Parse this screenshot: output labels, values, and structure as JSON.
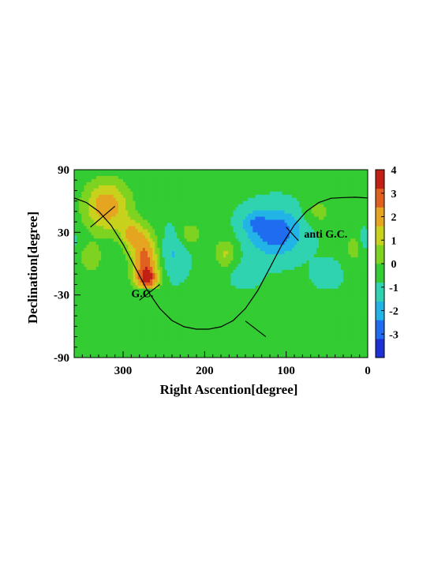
{
  "chart_data": {
    "type": "heatmap",
    "title": "",
    "xlabel": "Right Ascention[degree]",
    "ylabel": "Declination[degree]",
    "xlim": [
      360,
      0
    ],
    "ylim": [
      -90,
      90
    ],
    "x_reversed": true,
    "x_ticks": [
      300,
      200,
      100,
      0
    ],
    "x_tick_labels": [
      "300",
      "200",
      "100",
      "0"
    ],
    "y_ticks": [
      90,
      30,
      -30,
      -90
    ],
    "y_tick_labels": [
      "90",
      "30",
      "-30",
      "-90"
    ],
    "colorbar": {
      "range": [
        -4,
        4
      ],
      "ticks": [
        4,
        3,
        2,
        1,
        0,
        -1,
        -2,
        -3
      ],
      "tick_labels": [
        "4",
        "3",
        "2",
        "1",
        "0",
        "-1",
        "-2",
        "-3"
      ],
      "colors": [
        "#1f2fd6",
        "#1f6cf0",
        "#22b4e6",
        "#2fd3b0",
        "#33cc33",
        "#7ed320",
        "#c8d21c",
        "#e6a520",
        "#e06020",
        "#c21f15"
      ]
    },
    "grid": false,
    "background_value": -0.7,
    "coverage_dec_min": -25,
    "features": [
      {
        "name": "G.C. excess",
        "ra": 273,
        "dec": 5,
        "sigma_ra": 12,
        "sigma_dec": 18,
        "amp": 3.3
      },
      {
        "name": "G.C. excess lower",
        "ra": 270,
        "dec": -15,
        "sigma_ra": 10,
        "sigma_dec": 8,
        "amp": 2.7
      },
      {
        "name": "Cygnus excess",
        "ra": 320,
        "dec": 55,
        "sigma_ra": 20,
        "sigma_dec": 18,
        "amp": 2.9
      },
      {
        "name": "excess 285",
        "ra": 290,
        "dec": 28,
        "sigma_ra": 10,
        "sigma_dec": 10,
        "amp": 2.0
      },
      {
        "name": "excess 175",
        "ra": 175,
        "dec": 10,
        "sigma_ra": 9,
        "sigma_dec": 10,
        "amp": 1.6
      },
      {
        "name": "excess 215",
        "ra": 218,
        "dec": 28,
        "sigma_ra": 10,
        "sigma_dec": 8,
        "amp": 1.3
      },
      {
        "name": "excess 335",
        "ra": 340,
        "dec": 5,
        "sigma_ra": 10,
        "sigma_dec": 10,
        "amp": 1.3
      },
      {
        "name": "excess 15",
        "ra": 15,
        "dec": 15,
        "sigma_ra": 10,
        "sigma_dec": 10,
        "amp": 1.2
      },
      {
        "name": "excess 60",
        "ra": 60,
        "dec": 50,
        "sigma_ra": 12,
        "sigma_dec": 10,
        "amp": 1.0
      },
      {
        "name": "anti G.C. deficit",
        "ra": 113,
        "dec": 30,
        "sigma_ra": 22,
        "sigma_dec": 15,
        "amp": -2.4
      },
      {
        "name": "deficit 140",
        "ra": 140,
        "dec": 40,
        "sigma_ra": 10,
        "sigma_dec": 8,
        "amp": -1.0
      },
      {
        "name": "deficit 240",
        "ra": 240,
        "dec": 10,
        "sigma_ra": 12,
        "sigma_dec": 15,
        "amp": -1.0
      },
      {
        "name": "deficit 50",
        "ra": 50,
        "dec": -10,
        "sigma_ra": 10,
        "sigma_dec": 8,
        "amp": -0.9
      },
      {
        "name": "deficit 5",
        "ra": 5,
        "dec": 20,
        "sigma_ra": 6,
        "sigma_dec": 10,
        "amp": -1.0
      },
      {
        "name": "deficit 150",
        "ra": 150,
        "dec": -10,
        "sigma_ra": 12,
        "sigma_dec": 8,
        "amp": -0.6
      }
    ],
    "galactic_plane": [
      {
        "ra": 360,
        "dec": 62.9
      },
      {
        "ra": 345,
        "dec": 58.5
      },
      {
        "ra": 330,
        "dec": 50.2
      },
      {
        "ra": 315,
        "dec": 37.0
      },
      {
        "ra": 300,
        "dec": 18.5
      },
      {
        "ra": 285,
        "dec": -4.0
      },
      {
        "ra": 270,
        "dec": -26.0
      },
      {
        "ra": 255,
        "dec": -43.0
      },
      {
        "ra": 240,
        "dec": -54.5
      },
      {
        "ra": 225,
        "dec": -60.5
      },
      {
        "ra": 210,
        "dec": -62.8
      },
      {
        "ra": 195,
        "dec": -62.8
      },
      {
        "ra": 180,
        "dec": -60.5
      },
      {
        "ra": 165,
        "dec": -54.5
      },
      {
        "ra": 150,
        "dec": -43.0
      },
      {
        "ra": 135,
        "dec": -26.0
      },
      {
        "ra": 120,
        "dec": -4.0
      },
      {
        "ra": 105,
        "dec": 18.5
      },
      {
        "ra": 90,
        "dec": 37.0
      },
      {
        "ra": 75,
        "dec": 50.2
      },
      {
        "ra": 60,
        "dec": 58.5
      },
      {
        "ra": 45,
        "dec": 62.6
      },
      {
        "ra": 30,
        "dec": 63.3
      },
      {
        "ra": 15,
        "dec": 63.6
      },
      {
        "ra": 0,
        "dec": 62.9
      }
    ],
    "tick_marks": [
      {
        "ra1": 340,
        "dec1": 35,
        "ra2": 310,
        "dec2": 55
      },
      {
        "ra1": 280,
        "dec1": -35,
        "ra2": 255,
        "dec2": -20
      },
      {
        "ra1": 150,
        "dec1": -55,
        "ra2": 125,
        "dec2": -70
      },
      {
        "ra1": 100,
        "dec1": 35,
        "ra2": 85,
        "dec2": 22
      }
    ],
    "annotations": [
      {
        "text": "G.C.",
        "ra": 290,
        "dec": -32
      },
      {
        "text": "anti G.C.",
        "ra": 78,
        "dec": 25
      }
    ]
  }
}
